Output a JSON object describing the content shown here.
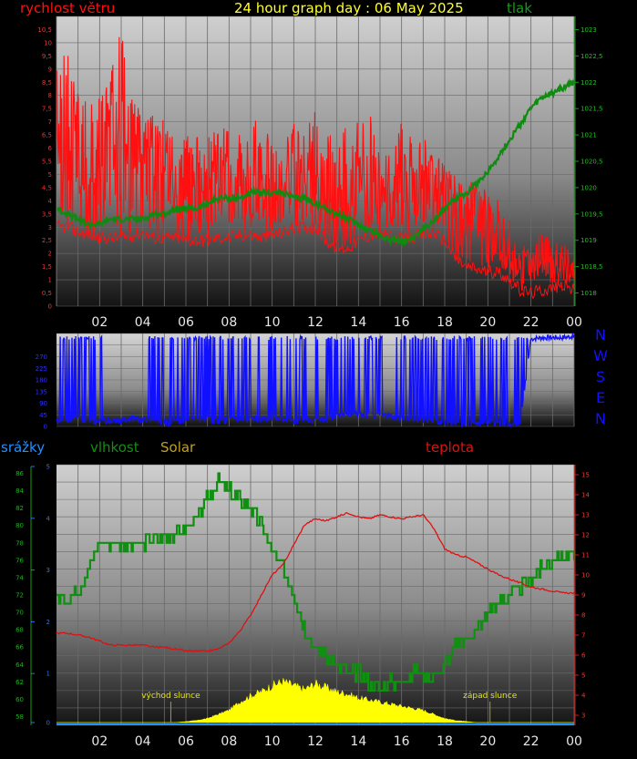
{
  "title": "24 hour graph day : 06 May 2025",
  "colors": {
    "wind": "#ff1010",
    "pressure": "#108010",
    "direction": "#1010ff",
    "rain": "#2090ff",
    "humidity": "#109010",
    "solar": "#ffff00",
    "solar_label": "#c0a020",
    "temperature": "#e01010",
    "tick_red": "#ff3030",
    "tick_green": "#20c020",
    "tick_blue": "#3030ff"
  },
  "x_ticks": [
    "02",
    "04",
    "06",
    "08",
    "10",
    "12",
    "14",
    "16",
    "18",
    "20",
    "22",
    "00"
  ],
  "chart_data": [
    {
      "type": "line",
      "panel": "wind-pressure",
      "title": "24 hour graph day : 06 May 2025",
      "x_unit": "hours",
      "xlim": [
        0,
        24
      ],
      "series": [
        {
          "name": "rychlost větru",
          "axis": "left",
          "ylim": [
            0,
            11
          ],
          "y_ticks": [
            "0",
            "0,5",
            "1",
            "1,5",
            "2",
            "2,5",
            "3",
            "3,5",
            "4",
            "4,5",
            "5",
            "5,5",
            "6",
            "6,5",
            "7",
            "7,5",
            "8",
            "8,5",
            "9",
            "9,5",
            "10",
            "10,5"
          ],
          "x": [
            0,
            0.5,
            1,
            1.5,
            2,
            2.5,
            3,
            3.5,
            4,
            4.5,
            5,
            5.5,
            6,
            6.5,
            7,
            7.5,
            8,
            8.5,
            9,
            9.5,
            10,
            10.5,
            11,
            11.5,
            12,
            12.5,
            13,
            13.5,
            14,
            14.5,
            15,
            15.5,
            16,
            16.5,
            17,
            17.5,
            18,
            18.5,
            19,
            19.5,
            20,
            20.5,
            21,
            21.5,
            22,
            22.5,
            23,
            23.5,
            24
          ],
          "values": [
            6.5,
            7.0,
            6.0,
            5.5,
            5.5,
            6.0,
            6.0,
            5.5,
            5.5,
            5.5,
            5.0,
            5.0,
            4.5,
            4.5,
            4.5,
            5.0,
            4.5,
            4.5,
            5.0,
            4.5,
            5.0,
            4.5,
            4.5,
            4.5,
            5.0,
            4.5,
            4.5,
            4.5,
            4.5,
            4.5,
            4.5,
            4.0,
            4.5,
            4.5,
            4.5,
            4.5,
            4.0,
            3.5,
            3.5,
            3.5,
            3.0,
            2.5,
            2.0,
            1.5,
            1.5,
            1.5,
            1.5,
            1.5,
            1.0
          ],
          "base_values": [
            3.0,
            3.0,
            2.8,
            2.7,
            2.6,
            2.6,
            2.6,
            2.7,
            2.8,
            2.6,
            2.6,
            2.6,
            2.5,
            2.5,
            2.5,
            2.6,
            2.6,
            2.7,
            2.7,
            2.6,
            2.7,
            2.8,
            3.0,
            3.0,
            3.0,
            2.5,
            2.2,
            2.2,
            2.5,
            2.7,
            2.8,
            2.6,
            2.6,
            2.6,
            2.7,
            2.8,
            2.5,
            1.8,
            1.5,
            1.4,
            1.3,
            1.3,
            1.0,
            0.6,
            0.5,
            0.6,
            0.7,
            0.8,
            0.6
          ],
          "peak_values": [
            9.0,
            9.8,
            8.5,
            8.0,
            8.0,
            9.0,
            10.5,
            8.0,
            7.5,
            7.5,
            7.0,
            7.0,
            6.5,
            6.5,
            6.5,
            7.0,
            7.0,
            6.5,
            7.5,
            6.5,
            7.5,
            6.5,
            7.0,
            6.5,
            7.5,
            6.5,
            6.5,
            7.0,
            7.0,
            7.5,
            6.5,
            6.0,
            7.0,
            6.5,
            6.5,
            6.0,
            5.5,
            5.0,
            5.0,
            4.5,
            4.5,
            4.0,
            3.5,
            2.5,
            2.5,
            3.0,
            2.5,
            2.5,
            2.0
          ]
        },
        {
          "name": "tlak",
          "axis": "right",
          "ylim": [
            1017.75,
            1023.25
          ],
          "y_ticks": [
            "1018",
            "1018,5",
            "1019",
            "1019,5",
            "1020",
            "1020,5",
            "1021",
            "1021,5",
            "1022",
            "1022,5",
            "1023"
          ],
          "x": [
            0,
            0.5,
            1,
            1.5,
            2,
            2.5,
            3,
            3.5,
            4,
            4.5,
            5,
            5.5,
            6,
            6.5,
            7,
            7.5,
            8,
            8.5,
            9,
            9.5,
            10,
            10.5,
            11,
            11.5,
            12,
            12.5,
            13,
            13.5,
            14,
            14.5,
            15,
            15.5,
            16,
            16.5,
            17,
            17.5,
            18,
            18.5,
            19,
            19.5,
            20,
            20.5,
            21,
            21.5,
            22,
            22.5,
            23,
            23.5,
            24
          ],
          "values": [
            1019.6,
            1019.5,
            1019.4,
            1019.3,
            1019.3,
            1019.4,
            1019.4,
            1019.4,
            1019.4,
            1019.5,
            1019.5,
            1019.6,
            1019.6,
            1019.6,
            1019.7,
            1019.8,
            1019.8,
            1019.8,
            1019.9,
            1019.9,
            1019.9,
            1019.9,
            1019.8,
            1019.8,
            1019.7,
            1019.6,
            1019.5,
            1019.4,
            1019.3,
            1019.2,
            1019.1,
            1019.0,
            1019.0,
            1019.0,
            1019.2,
            1019.4,
            1019.6,
            1019.8,
            1019.9,
            1020.1,
            1020.3,
            1020.6,
            1020.9,
            1021.2,
            1021.5,
            1021.7,
            1021.8,
            1021.9,
            1022.0
          ]
        }
      ]
    },
    {
      "type": "line",
      "panel": "wind-direction",
      "x_unit": "hours",
      "xlim": [
        0,
        24
      ],
      "ylim": [
        0,
        360
      ],
      "y_ticks": [
        "0",
        "45",
        "90",
        "135",
        "180",
        "225",
        "270"
      ],
      "direction_labels": [
        "N",
        "W",
        "S",
        "E",
        "N"
      ],
      "series": [
        {
          "name": "wind direction",
          "x": [
            0,
            0.5,
            1,
            1.5,
            2,
            2.5,
            3,
            3.5,
            4,
            4.5,
            5,
            5.5,
            6,
            6.5,
            7,
            7.5,
            8,
            8.5,
            9,
            9.5,
            10,
            10.5,
            11,
            11.5,
            12,
            12.5,
            13,
            13.5,
            14,
            14.5,
            15,
            15.5,
            16,
            16.5,
            17,
            17.5,
            18,
            18.5,
            19,
            19.5,
            20,
            20.5,
            21,
            21.5,
            22,
            22.5,
            23,
            23.5,
            24
          ],
          "values": [
            20,
            25,
            30,
            20,
            15,
            25,
            20,
            30,
            25,
            20,
            15,
            20,
            25,
            30,
            25,
            20,
            25,
            30,
            25,
            30,
            35,
            30,
            25,
            30,
            20,
            25,
            40,
            50,
            45,
            40,
            45,
            40,
            35,
            30,
            25,
            20,
            15,
            10,
            5,
            10,
            15,
            10,
            5,
            10,
            340,
            345,
            345,
            345,
            350
          ],
          "spike_values": [
            350,
            350,
            350,
            350,
            350,
            0,
            0,
            0,
            0,
            350,
            350,
            350,
            350,
            350,
            350,
            350,
            350,
            350,
            350,
            350,
            350,
            350,
            350,
            350,
            350,
            350,
            350,
            350,
            350,
            350,
            350,
            0,
            350,
            350,
            350,
            350,
            350,
            350,
            350,
            350,
            350,
            350,
            350,
            350,
            350,
            350,
            350,
            350,
            350
          ]
        }
      ]
    },
    {
      "type": "line",
      "panel": "rain-humidity-solar-temperature",
      "x_unit": "hours",
      "xlim": [
        0,
        24
      ],
      "annotations": [
        {
          "label": "východ slunce",
          "x": 5.3
        },
        {
          "label": "západ slunce",
          "x": 20.1
        }
      ],
      "series": [
        {
          "name": "srážky",
          "axis": "left-outer",
          "ylim": [
            0,
            5
          ],
          "y_ticks": [
            "0",
            "1",
            "2",
            "3",
            "4",
            "5"
          ],
          "x": [
            0,
            24
          ],
          "values": [
            0,
            0
          ]
        },
        {
          "name": "vlhkost",
          "axis": "left-inner",
          "ylim": [
            57,
            87
          ],
          "y_ticks": [
            "58",
            "60",
            "62",
            "64",
            "66",
            "68",
            "70",
            "72",
            "74",
            "76",
            "78",
            "80",
            "82",
            "84",
            "86"
          ],
          "x": [
            0,
            0.5,
            1,
            1.5,
            2,
            2.5,
            3,
            3.5,
            4,
            4.5,
            5,
            5.5,
            6,
            6.5,
            7,
            7.5,
            8,
            8.5,
            9,
            9.5,
            10,
            10.5,
            11,
            11.5,
            12,
            12.5,
            13,
            13.5,
            14,
            14.5,
            15,
            15.5,
            16,
            16.5,
            17,
            17.5,
            18,
            18.5,
            19,
            19.5,
            20,
            20.5,
            21,
            21.5,
            22,
            22.5,
            23,
            23.5,
            24
          ],
          "values": [
            71.5,
            71.5,
            72.5,
            75,
            78,
            78,
            78,
            77.5,
            78,
            78.5,
            78.5,
            79,
            79.5,
            81,
            83,
            85,
            84,
            83,
            82,
            80,
            77,
            75,
            72,
            68,
            66,
            65,
            64,
            63,
            63,
            62,
            61,
            62,
            62,
            63,
            63,
            62.5,
            64,
            66,
            67,
            68,
            70,
            71,
            72,
            73,
            74,
            75,
            76,
            76.5,
            77
          ]
        },
        {
          "name": "Solar",
          "axis": "none",
          "ylim": [
            0,
            1000
          ],
          "x": [
            0,
            0.5,
            1,
            1.5,
            2,
            2.5,
            3,
            3.5,
            4,
            4.5,
            5,
            5.5,
            6,
            6.5,
            7,
            7.5,
            8,
            8.5,
            9,
            9.5,
            10,
            10.5,
            11,
            11.5,
            12,
            12.5,
            13,
            13.5,
            14,
            14.5,
            15,
            15.5,
            16,
            16.5,
            17,
            17.5,
            18,
            18.5,
            19,
            19.5,
            20,
            20.5,
            21,
            21.5,
            22,
            22.5,
            23,
            23.5,
            24
          ],
          "values": [
            0,
            0,
            0,
            0,
            0,
            0,
            0,
            0,
            0,
            0,
            0,
            0,
            5,
            10,
            20,
            40,
            60,
            100,
            130,
            150,
            180,
            200,
            180,
            160,
            190,
            170,
            150,
            140,
            120,
            110,
            100,
            90,
            80,
            70,
            60,
            40,
            20,
            10,
            5,
            0,
            0,
            0,
            0,
            0,
            0,
            0,
            0,
            0,
            0
          ]
        },
        {
          "name": "teplota",
          "axis": "right",
          "ylim": [
            2.5,
            15.5
          ],
          "y_ticks": [
            "3",
            "4",
            "5",
            "6",
            "7",
            "8",
            "9",
            "10",
            "11",
            "12",
            "13",
            "14",
            "15"
          ],
          "x": [
            0,
            0.5,
            1,
            1.5,
            2,
            2.5,
            3,
            3.5,
            4,
            4.5,
            5,
            5.5,
            6,
            6.5,
            7,
            7.5,
            8,
            8.5,
            9,
            9.5,
            10,
            10.5,
            11,
            11.5,
            12,
            12.5,
            13,
            13.5,
            14,
            14.5,
            15,
            15.5,
            16,
            16.5,
            17,
            17.5,
            18,
            18.5,
            19,
            19.5,
            20,
            20.5,
            21,
            21.5,
            22,
            22.5,
            23,
            23.5,
            24
          ],
          "values": [
            7.1,
            7.1,
            7.0,
            6.9,
            6.7,
            6.5,
            6.5,
            6.5,
            6.5,
            6.4,
            6.4,
            6.3,
            6.2,
            6.2,
            6.2,
            6.3,
            6.6,
            7.2,
            8.0,
            9.0,
            10.0,
            10.5,
            11.5,
            12.5,
            12.8,
            12.7,
            12.9,
            13.1,
            12.9,
            12.8,
            13.0,
            12.9,
            12.8,
            12.9,
            13.0,
            12.3,
            11.3,
            11.0,
            10.9,
            10.6,
            10.3,
            10.0,
            9.8,
            9.6,
            9.4,
            9.3,
            9.2,
            9.1,
            9.1
          ]
        }
      ]
    }
  ],
  "labels": {
    "wind": "rychlost větru",
    "pressure": "tlak",
    "rain": "srážky",
    "humidity": "vlhkost",
    "solar": "Solar",
    "temperature": "teplota"
  }
}
